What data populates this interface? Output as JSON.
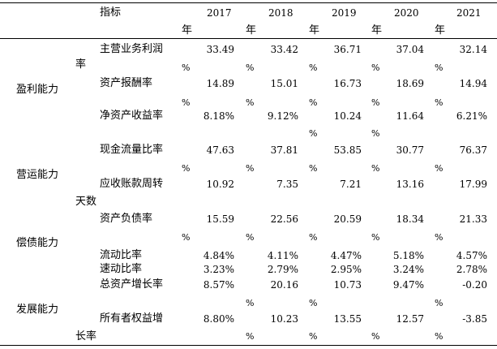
{
  "table": {
    "header_label": "指标",
    "years": [
      "2017",
      "2018",
      "2019",
      "2020",
      "2021"
    ],
    "year_suffix": "年",
    "categories": [
      "盈利能力",
      "营运能力",
      "偿债能力",
      "发展能力"
    ],
    "rows": [
      {
        "name_line1": "主营业务利润",
        "name_line2": "率",
        "values": [
          "33.49",
          "33.42",
          "36.71",
          "37.04",
          "32.14"
        ],
        "pcts": [
          "%",
          "%",
          "%",
          "%",
          "%"
        ]
      },
      {
        "name_line1": "资产报酬率",
        "values": [
          "14.89",
          "15.01",
          "16.73",
          "18.69",
          "14.94"
        ],
        "pcts": [
          "%",
          "%",
          "%",
          "%",
          "%"
        ]
      },
      {
        "name_line1": "净资产收益率",
        "values": [
          "8.18%",
          "9.12%",
          "10.24",
          "11.64",
          "6.21%"
        ],
        "pcts": [
          "",
          "",
          "%",
          "%",
          ""
        ]
      },
      {
        "name_line1": "现金流量比率",
        "values": [
          "47.63",
          "37.81",
          "53.85",
          "30.77",
          "76.37"
        ],
        "pcts": [
          "%",
          "%",
          "%",
          "%",
          "%"
        ]
      },
      {
        "name_line1": "应收账款周转",
        "name_line2": "天数",
        "values": [
          "10.92",
          "7.35",
          "7.21",
          "13.16",
          "17.99"
        ],
        "pcts": [
          "",
          "",
          "",
          "",
          ""
        ]
      },
      {
        "name_line1": "资产负债率",
        "values": [
          "15.59",
          "22.56",
          "20.59",
          "18.34",
          "21.33"
        ],
        "pcts": [
          "%",
          "%",
          "%",
          "%",
          "%"
        ]
      },
      {
        "name_line1": "流动比率",
        "values": [
          "4.84%",
          "4.11%",
          "4.47%",
          "5.18%",
          "4.57%"
        ],
        "pcts": [
          "",
          "",
          "",
          "",
          ""
        ]
      },
      {
        "name_line1": "速动比率",
        "values": [
          "3.23%",
          "2.79%",
          "2.95%",
          "3.24%",
          "2.78%"
        ],
        "pcts": [
          "",
          "",
          "",
          "",
          ""
        ]
      },
      {
        "name_line1": "总资产增长率",
        "values": [
          "8.57%",
          "20.16",
          "10.73",
          "9.47%",
          "-0.20"
        ],
        "pcts": [
          "",
          "%",
          "%",
          "",
          "%"
        ]
      },
      {
        "name_line1": "所有者权益增",
        "name_line2": "长率",
        "values": [
          "8.80%",
          "10.23",
          "13.55",
          "12.57",
          "-3.85"
        ],
        "pcts": [
          "",
          "%",
          "%",
          "%",
          "%"
        ]
      }
    ]
  }
}
